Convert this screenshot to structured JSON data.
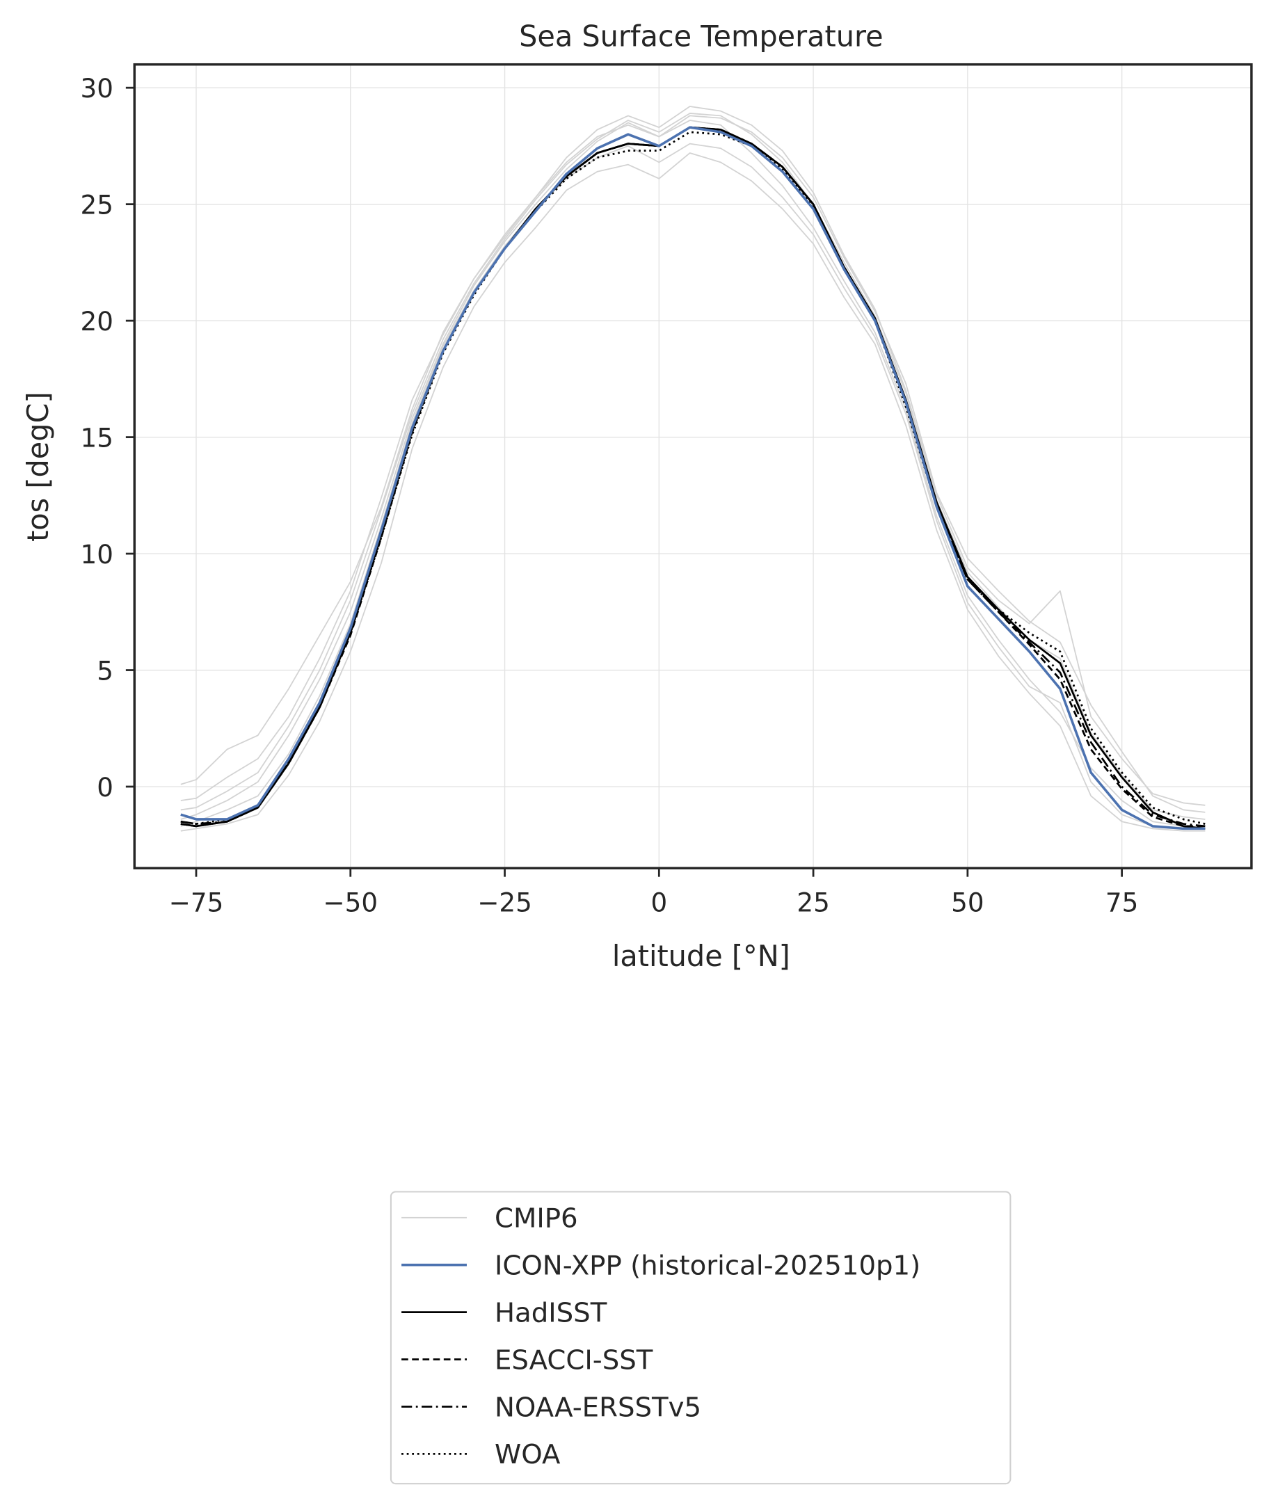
{
  "chart_data": {
    "type": "line",
    "title": "Sea Surface Temperature",
    "xlabel": "latitude [°N]",
    "ylabel": "tos [degC]",
    "xlim": [
      -85,
      96
    ],
    "ylim": [
      -3.5,
      31
    ],
    "xticks": [
      -75,
      -50,
      -25,
      0,
      25,
      50,
      75
    ],
    "xtick_labels": [
      "−75",
      "−50",
      "−25",
      "0",
      "25",
      "50",
      "75"
    ],
    "yticks": [
      0,
      5,
      10,
      15,
      20,
      25,
      30
    ],
    "ytick_labels": [
      "0",
      "5",
      "10",
      "15",
      "20",
      "25",
      "30"
    ],
    "grid": true,
    "legend_position": "below",
    "x": [
      -77.5,
      -75,
      -70,
      -65,
      -60,
      -55,
      -50,
      -45,
      -40,
      -35,
      -30,
      -25,
      -20,
      -15,
      -10,
      -5,
      0,
      5,
      10,
      15,
      20,
      25,
      30,
      35,
      40,
      45,
      50,
      55,
      60,
      65,
      70,
      75,
      80,
      85,
      88.5
    ],
    "cmip6_label": "CMIP6",
    "cmip6_color": "#d3d3d3",
    "cmip6_members": [
      [
        0.1,
        0.3,
        1.6,
        2.2,
        4.2,
        6.5,
        8.8,
        12.0,
        16.2,
        19.5,
        21.8,
        23.7,
        25.3,
        27.0,
        28.2,
        28.8,
        28.3,
        29.2,
        29.0,
        28.4,
        27.3,
        25.5,
        22.8,
        20.5,
        17.0,
        12.5,
        9.4,
        8.0,
        7.0,
        8.4,
        3.0,
        1.2,
        -0.3,
        -0.7,
        -0.8
      ],
      [
        -1.9,
        -1.8,
        -1.6,
        -1.2,
        0.5,
        2.8,
        5.8,
        9.6,
        14.5,
        18.0,
        20.6,
        22.5,
        24.0,
        25.6,
        26.4,
        26.7,
        26.1,
        27.2,
        26.8,
        26.0,
        24.8,
        23.3,
        21.0,
        19.0,
        15.5,
        11.0,
        7.6,
        5.6,
        4.0,
        2.6,
        -0.4,
        -1.5,
        -1.8,
        -1.9,
        -1.9
      ],
      [
        -0.6,
        -0.5,
        0.4,
        1.2,
        3.0,
        5.5,
        8.4,
        12.4,
        16.6,
        19.4,
        21.8,
        23.6,
        25.3,
        26.8,
        27.9,
        28.4,
        27.9,
        28.8,
        28.7,
        28.1,
        27.0,
        25.3,
        22.7,
        20.4,
        17.3,
        12.6,
        9.8,
        8.4,
        7.1,
        6.2,
        3.5,
        1.5,
        -0.4,
        -1.0,
        -1.1
      ],
      [
        -1.4,
        -1.2,
        -0.6,
        0.2,
        2.2,
        4.6,
        7.5,
        11.5,
        15.8,
        19.0,
        21.5,
        23.4,
        25.0,
        26.5,
        27.7,
        28.5,
        27.9,
        28.6,
        28.4,
        27.2,
        25.8,
        24.0,
        21.7,
        19.5,
        16.2,
        11.6,
        8.2,
        6.3,
        4.6,
        3.2,
        0.8,
        -0.6,
        -1.5,
        -1.7,
        -1.8
      ],
      [
        -1.0,
        -0.9,
        -0.2,
        0.6,
        2.6,
        5.0,
        8.0,
        11.9,
        16.0,
        19.2,
        21.6,
        23.5,
        25.2,
        26.7,
        27.8,
        28.6,
        28.1,
        28.9,
        28.8,
        28.0,
        26.8,
        25.0,
        22.5,
        20.2,
        16.9,
        12.3,
        9.2,
        7.7,
        6.3,
        5.5,
        2.3,
        0.5,
        -1.0,
        -1.3,
        -1.4
      ],
      [
        -1.7,
        -1.5,
        -1.0,
        -0.4,
        1.4,
        3.9,
        7.0,
        11.2,
        15.6,
        18.9,
        21.3,
        23.2,
        24.8,
        26.1,
        27.0,
        27.5,
        26.8,
        27.6,
        27.4,
        26.6,
        25.3,
        23.7,
        21.4,
        19.3,
        16.0,
        11.4,
        7.9,
        6.0,
        4.3,
        3.6,
        0.2,
        -1.2,
        -1.7,
        -1.8,
        -1.8
      ]
    ],
    "series": [
      {
        "name": "ICON-XPP (historical-202510p1)",
        "color": "#4c72b0",
        "style": "solid",
        "values": [
          -1.2,
          -1.4,
          -1.4,
          -0.8,
          1.2,
          3.6,
          6.8,
          11.0,
          15.4,
          18.7,
          21.2,
          23.1,
          24.7,
          26.3,
          27.4,
          28.0,
          27.5,
          28.3,
          28.1,
          27.5,
          26.4,
          24.8,
          22.2,
          20.0,
          16.5,
          12.0,
          8.6,
          7.2,
          5.8,
          4.2,
          0.6,
          -1.0,
          -1.7,
          -1.8,
          -1.8
        ]
      },
      {
        "name": "HadISST",
        "color": "#000000",
        "style": "solid",
        "values": [
          -1.6,
          -1.7,
          -1.5,
          -0.9,
          1.0,
          3.4,
          6.6,
          10.8,
          15.3,
          18.7,
          21.2,
          23.1,
          24.8,
          26.2,
          27.2,
          27.6,
          27.5,
          28.3,
          28.2,
          27.6,
          26.6,
          25.0,
          22.3,
          20.1,
          16.6,
          12.2,
          9.0,
          7.6,
          6.3,
          5.3,
          2.2,
          0.4,
          -1.1,
          -1.7,
          -1.8
        ]
      },
      {
        "name": "ESACCI-SST",
        "color": "#000000",
        "style": "dashed",
        "values": [
          -1.6,
          -1.7,
          -1.5,
          -0.9,
          1.0,
          3.4,
          6.5,
          10.7,
          15.2,
          18.7,
          21.2,
          23.1,
          24.8,
          26.2,
          27.2,
          27.6,
          27.5,
          28.3,
          28.2,
          27.6,
          26.6,
          25.0,
          22.3,
          20.1,
          16.5,
          12.1,
          8.9,
          7.5,
          6.1,
          4.6,
          1.6,
          -0.1,
          -1.3,
          -1.7,
          -1.7
        ]
      },
      {
        "name": "NOAA-ERSSTv5",
        "color": "#000000",
        "style": "dashdot",
        "values": [
          -1.5,
          -1.6,
          -1.5,
          -0.9,
          1.1,
          3.5,
          6.6,
          10.8,
          15.3,
          18.7,
          21.2,
          23.1,
          24.8,
          26.2,
          27.2,
          27.6,
          27.5,
          28.3,
          28.2,
          27.6,
          26.6,
          25.0,
          22.3,
          20.1,
          16.5,
          12.1,
          8.9,
          7.5,
          6.2,
          4.9,
          1.9,
          0.0,
          -1.2,
          -1.6,
          -1.7
        ]
      },
      {
        "name": "WOA",
        "color": "#000000",
        "style": "dotted",
        "values": [
          -1.5,
          -1.6,
          -1.4,
          -0.8,
          1.1,
          3.5,
          6.6,
          10.7,
          15.1,
          18.6,
          21.1,
          23.1,
          24.7,
          26.1,
          27.0,
          27.3,
          27.3,
          28.1,
          28.0,
          27.5,
          26.5,
          24.9,
          22.2,
          20.0,
          16.3,
          12.0,
          8.9,
          7.6,
          6.6,
          5.8,
          2.5,
          0.6,
          -0.9,
          -1.4,
          -1.6
        ]
      }
    ]
  }
}
